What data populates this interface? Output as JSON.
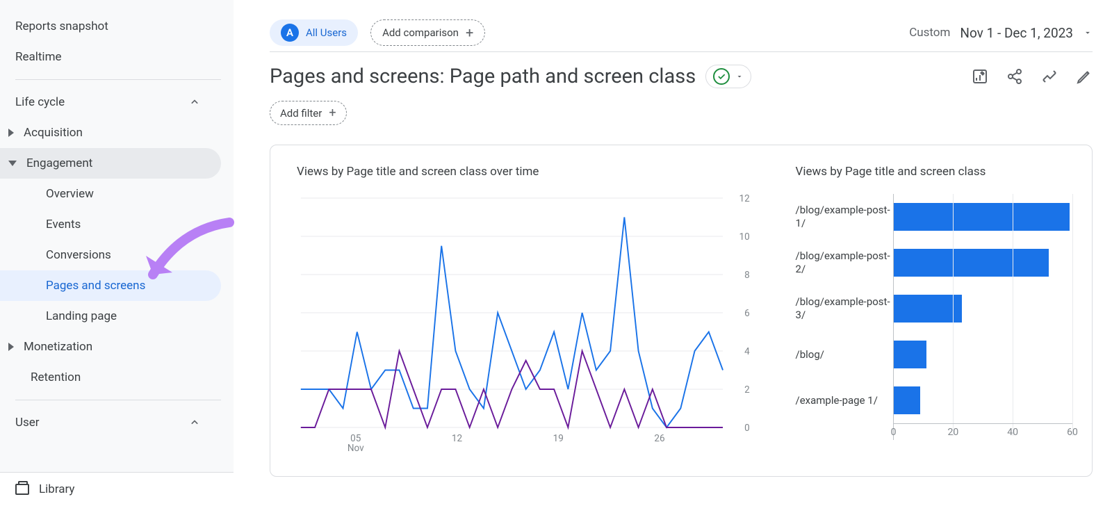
{
  "sidebar": {
    "reports_snapshot": "Reports snapshot",
    "realtime": "Realtime",
    "life_cycle": "Life cycle",
    "acquisition": "Acquisition",
    "engagement": "Engagement",
    "overview": "Overview",
    "events": "Events",
    "conversions": "Conversions",
    "pages_screens": "Pages and screens",
    "landing_page": "Landing page",
    "monetization": "Monetization",
    "retention": "Retention",
    "user": "User",
    "library": "Library"
  },
  "header": {
    "audience_badge": "A",
    "all_users": "All Users",
    "add_comparison": "Add comparison",
    "custom_label": "Custom",
    "date_range": "Nov 1 - Dec 1, 2023"
  },
  "page": {
    "title": "Pages and screens: Page path and screen class",
    "add_filter": "Add filter"
  },
  "line_chart": {
    "title": "Views by Page title and screen class over time",
    "ylim": [
      0,
      12
    ],
    "yticks": [
      0,
      2,
      4,
      6,
      8,
      10,
      12
    ],
    "x_tick_labels": [
      "05",
      "12",
      "19",
      "26"
    ],
    "x_tick_positions": [
      0.13,
      0.37,
      0.61,
      0.85
    ],
    "x_sublabel": "Nov",
    "grid_color": "#e8eaed",
    "series": [
      {
        "color": "#1a73e8",
        "values": [
          2,
          2,
          2,
          1,
          5,
          2,
          3,
          3,
          1,
          1,
          9.5,
          4,
          2,
          1,
          6,
          4,
          2,
          3,
          5,
          2,
          6,
          3,
          4,
          11,
          4,
          1,
          0,
          1,
          4,
          5,
          3
        ]
      },
      {
        "color": "#6a1b9a",
        "values": [
          0,
          0,
          2,
          2,
          2,
          2,
          0,
          4,
          2,
          0,
          2,
          2,
          0,
          2,
          0,
          2,
          3.5,
          2,
          2,
          0,
          4,
          2,
          0,
          2,
          0,
          2,
          0,
          0,
          0,
          0,
          0
        ]
      }
    ]
  },
  "bar_chart": {
    "title": "Views by Page title and screen class",
    "xlim": [
      0,
      60
    ],
    "xticks": [
      0,
      20,
      40,
      60
    ],
    "bar_color": "#1a73e8",
    "grid_color": "#e8eaed",
    "items": [
      {
        "label": "/blog/example-post-1/",
        "value": 59
      },
      {
        "label": "/blog/example-post-2/",
        "value": 52
      },
      {
        "label": "/blog/example-post-3/",
        "value": 23
      },
      {
        "label": "/blog/",
        "value": 11
      },
      {
        "label": "/example-page 1/",
        "value": 9
      }
    ]
  },
  "annotation": {
    "arrow_color": "#b880f5"
  }
}
